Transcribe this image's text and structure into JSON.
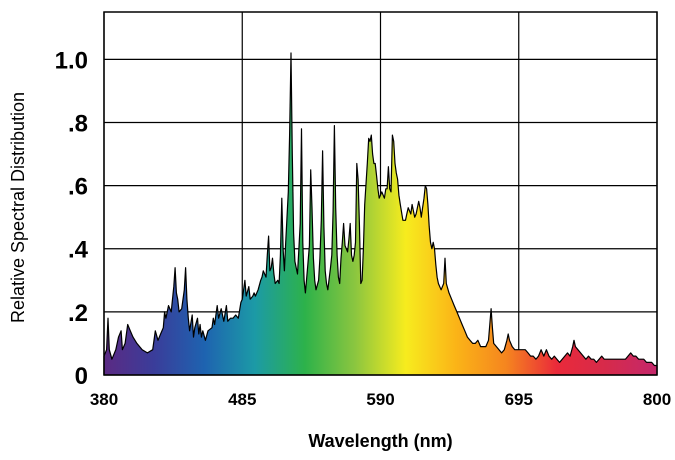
{
  "chart_data": {
    "type": "area",
    "title": "",
    "xlabel": "Wavelength (nm)",
    "ylabel": "Relative Spectral Distribution",
    "xlim": [
      380,
      800
    ],
    "ylim": [
      0,
      1.15
    ],
    "grid": true,
    "x_ticks": [
      {
        "value": 380,
        "label": "380"
      },
      {
        "value": 485,
        "label": "485"
      },
      {
        "value": 590,
        "label": "590"
      },
      {
        "value": 695,
        "label": "695"
      },
      {
        "value": 800,
        "label": "800"
      }
    ],
    "y_ticks": [
      {
        "value": 0,
        "label": "0"
      },
      {
        "value": 0.2,
        "label": ".2"
      },
      {
        "value": 0.4,
        "label": ".4"
      },
      {
        "value": 0.6,
        "label": ".6"
      },
      {
        "value": 0.8,
        "label": ".8"
      },
      {
        "value": 1.0,
        "label": "1.0"
      }
    ],
    "gradient_colors": [
      "#5b2a83",
      "#3a3d9a",
      "#1e63b0",
      "#1c9aa6",
      "#2db24a",
      "#8cc63f",
      "#f7ec1e",
      "#fbb417",
      "#f5851f",
      "#ea2a3a",
      "#d62a4b",
      "#c4286c"
    ],
    "series": [
      {
        "name": "",
        "points": [
          [
            380,
            0.06
          ],
          [
            382,
            0.08
          ],
          [
            383,
            0.18
          ],
          [
            384,
            0.08
          ],
          [
            386,
            0.05
          ],
          [
            389,
            0.08
          ],
          [
            391,
            0.12
          ],
          [
            393,
            0.14
          ],
          [
            394,
            0.08
          ],
          [
            396,
            0.1
          ],
          [
            398,
            0.16
          ],
          [
            400,
            0.14
          ],
          [
            402,
            0.12
          ],
          [
            405,
            0.1
          ],
          [
            409,
            0.08
          ],
          [
            413,
            0.07
          ],
          [
            417,
            0.08
          ],
          [
            419,
            0.14
          ],
          [
            421,
            0.11
          ],
          [
            423,
            0.13
          ],
          [
            425,
            0.15
          ],
          [
            426,
            0.2
          ],
          [
            427,
            0.18
          ],
          [
            429,
            0.22
          ],
          [
            431,
            0.2
          ],
          [
            433,
            0.28
          ],
          [
            434,
            0.34
          ],
          [
            435,
            0.26
          ],
          [
            436,
            0.24
          ],
          [
            437,
            0.2
          ],
          [
            439,
            0.21
          ],
          [
            441,
            0.27
          ],
          [
            442,
            0.34
          ],
          [
            443,
            0.24
          ],
          [
            444,
            0.18
          ],
          [
            445,
            0.14
          ],
          [
            447,
            0.19
          ],
          [
            448,
            0.12
          ],
          [
            449,
            0.15
          ],
          [
            451,
            0.18
          ],
          [
            452,
            0.13
          ],
          [
            453,
            0.16
          ],
          [
            454,
            0.12
          ],
          [
            455,
            0.14
          ],
          [
            457,
            0.11
          ],
          [
            459,
            0.14
          ],
          [
            462,
            0.15
          ],
          [
            463,
            0.18
          ],
          [
            464,
            0.16
          ],
          [
            466,
            0.22
          ],
          [
            467,
            0.18
          ],
          [
            469,
            0.21
          ],
          [
            471,
            0.17
          ],
          [
            473,
            0.22
          ],
          [
            474,
            0.17
          ],
          [
            476,
            0.18
          ],
          [
            478,
            0.18
          ],
          [
            480,
            0.19
          ],
          [
            482,
            0.18
          ],
          [
            484,
            0.23
          ],
          [
            485,
            0.24
          ],
          [
            486,
            0.27
          ],
          [
            487,
            0.3
          ],
          [
            488,
            0.25
          ],
          [
            490,
            0.28
          ],
          [
            491,
            0.24
          ],
          [
            493,
            0.25
          ],
          [
            494,
            0.26
          ],
          [
            495,
            0.25
          ],
          [
            497,
            0.27
          ],
          [
            499,
            0.3
          ],
          [
            500,
            0.31
          ],
          [
            501,
            0.33
          ],
          [
            503,
            0.31
          ],
          [
            504,
            0.38
          ],
          [
            505,
            0.44
          ],
          [
            506,
            0.33
          ],
          [
            507,
            0.34
          ],
          [
            508,
            0.37
          ],
          [
            509,
            0.32
          ],
          [
            510,
            0.29
          ],
          [
            512,
            0.3
          ],
          [
            513,
            0.29
          ],
          [
            514,
            0.38
          ],
          [
            515,
            0.56
          ],
          [
            516,
            0.4
          ],
          [
            517,
            0.33
          ],
          [
            518,
            0.42
          ],
          [
            520,
            0.58
          ],
          [
            521,
            0.76
          ],
          [
            522,
            1.02
          ],
          [
            523,
            0.7
          ],
          [
            524,
            0.45
          ],
          [
            525,
            0.36
          ],
          [
            527,
            0.32
          ],
          [
            528,
            0.4
          ],
          [
            529,
            0.48
          ],
          [
            530,
            0.78
          ],
          [
            531,
            0.42
          ],
          [
            532,
            0.3
          ],
          [
            533,
            0.26
          ],
          [
            535,
            0.36
          ],
          [
            536,
            0.41
          ],
          [
            537,
            0.65
          ],
          [
            538,
            0.53
          ],
          [
            539,
            0.37
          ],
          [
            540,
            0.3
          ],
          [
            541,
            0.27
          ],
          [
            543,
            0.3
          ],
          [
            544,
            0.37
          ],
          [
            545,
            0.49
          ],
          [
            546,
            0.71
          ],
          [
            547,
            0.47
          ],
          [
            548,
            0.33
          ],
          [
            549,
            0.29
          ],
          [
            550,
            0.27
          ],
          [
            552,
            0.34
          ],
          [
            553,
            0.38
          ],
          [
            554,
            0.52
          ],
          [
            555,
            0.79
          ],
          [
            556,
            0.53
          ],
          [
            557,
            0.38
          ],
          [
            558,
            0.31
          ],
          [
            559,
            0.29
          ],
          [
            560,
            0.37
          ],
          [
            561,
            0.42
          ],
          [
            562,
            0.48
          ],
          [
            563,
            0.41
          ],
          [
            565,
            0.39
          ],
          [
            566,
            0.43
          ],
          [
            567,
            0.48
          ],
          [
            568,
            0.38
          ],
          [
            569,
            0.36
          ],
          [
            570,
            0.38
          ],
          [
            571,
            0.42
          ],
          [
            572,
            0.67
          ],
          [
            573,
            0.62
          ],
          [
            574,
            0.48
          ],
          [
            575,
            0.29
          ],
          [
            576,
            0.3
          ],
          [
            577,
            0.4
          ],
          [
            578,
            0.54
          ],
          [
            580,
            0.67
          ],
          [
            581,
            0.75
          ],
          [
            582,
            0.74
          ],
          [
            583,
            0.76
          ],
          [
            584,
            0.7
          ],
          [
            585,
            0.67
          ],
          [
            586,
            0.67
          ],
          [
            587,
            0.63
          ],
          [
            588,
            0.59
          ],
          [
            589,
            0.56
          ],
          [
            591,
            0.58
          ],
          [
            593,
            0.56
          ],
          [
            594,
            0.59
          ],
          [
            595,
            0.59
          ],
          [
            596,
            0.66
          ],
          [
            597,
            0.59
          ],
          [
            598,
            0.58
          ],
          [
            599,
            0.76
          ],
          [
            600,
            0.74
          ],
          [
            601,
            0.67
          ],
          [
            602,
            0.64
          ],
          [
            603,
            0.62
          ],
          [
            604,
            0.57
          ],
          [
            605,
            0.54
          ],
          [
            607,
            0.49
          ],
          [
            609,
            0.49
          ],
          [
            610,
            0.51
          ],
          [
            611,
            0.53
          ],
          [
            612,
            0.52
          ],
          [
            613,
            0.51
          ],
          [
            614,
            0.54
          ],
          [
            615,
            0.52
          ],
          [
            616,
            0.5
          ],
          [
            617,
            0.51
          ],
          [
            618,
            0.53
          ],
          [
            619,
            0.55
          ],
          [
            620,
            0.53
          ],
          [
            621,
            0.5
          ],
          [
            622,
            0.53
          ],
          [
            623,
            0.56
          ],
          [
            624,
            0.6
          ],
          [
            625,
            0.59
          ],
          [
            626,
            0.54
          ],
          [
            627,
            0.47
          ],
          [
            628,
            0.42
          ],
          [
            629,
            0.4
          ],
          [
            630,
            0.42
          ],
          [
            631,
            0.4
          ],
          [
            632,
            0.35
          ],
          [
            633,
            0.31
          ],
          [
            634,
            0.29
          ],
          [
            636,
            0.27
          ],
          [
            638,
            0.29
          ],
          [
            639,
            0.37
          ],
          [
            640,
            0.29
          ],
          [
            642,
            0.26
          ],
          [
            644,
            0.24
          ],
          [
            646,
            0.22
          ],
          [
            648,
            0.2
          ],
          [
            650,
            0.18
          ],
          [
            652,
            0.16
          ],
          [
            654,
            0.14
          ],
          [
            656,
            0.12
          ],
          [
            658,
            0.11
          ],
          [
            660,
            0.1
          ],
          [
            662,
            0.1
          ],
          [
            664,
            0.11
          ],
          [
            666,
            0.09
          ],
          [
            668,
            0.09
          ],
          [
            670,
            0.09
          ],
          [
            672,
            0.11
          ],
          [
            673,
            0.16
          ],
          [
            674,
            0.21
          ],
          [
            675,
            0.15
          ],
          [
            676,
            0.1
          ],
          [
            678,
            0.09
          ],
          [
            680,
            0.08
          ],
          [
            682,
            0.07
          ],
          [
            684,
            0.08
          ],
          [
            686,
            0.11
          ],
          [
            687,
            0.13
          ],
          [
            688,
            0.11
          ],
          [
            690,
            0.09
          ],
          [
            692,
            0.08
          ],
          [
            694,
            0.08
          ],
          [
            696,
            0.08
          ],
          [
            698,
            0.08
          ],
          [
            700,
            0.08
          ],
          [
            702,
            0.07
          ],
          [
            704,
            0.06
          ],
          [
            706,
            0.06
          ],
          [
            708,
            0.05
          ],
          [
            710,
            0.06
          ],
          [
            712,
            0.08
          ],
          [
            714,
            0.06
          ],
          [
            716,
            0.08
          ],
          [
            718,
            0.06
          ],
          [
            720,
            0.05
          ],
          [
            722,
            0.06
          ],
          [
            724,
            0.05
          ],
          [
            726,
            0.04
          ],
          [
            728,
            0.05
          ],
          [
            730,
            0.06
          ],
          [
            732,
            0.07
          ],
          [
            734,
            0.06
          ],
          [
            736,
            0.09
          ],
          [
            737,
            0.11
          ],
          [
            738,
            0.09
          ],
          [
            740,
            0.08
          ],
          [
            742,
            0.07
          ],
          [
            744,
            0.06
          ],
          [
            746,
            0.05
          ],
          [
            748,
            0.06
          ],
          [
            750,
            0.05
          ],
          [
            752,
            0.05
          ],
          [
            754,
            0.04
          ],
          [
            756,
            0.05
          ],
          [
            758,
            0.06
          ],
          [
            760,
            0.05
          ],
          [
            762,
            0.05
          ],
          [
            764,
            0.05
          ],
          [
            766,
            0.05
          ],
          [
            768,
            0.05
          ],
          [
            770,
            0.05
          ],
          [
            772,
            0.05
          ],
          [
            774,
            0.05
          ],
          [
            776,
            0.05
          ],
          [
            778,
            0.06
          ],
          [
            780,
            0.07
          ],
          [
            782,
            0.06
          ],
          [
            784,
            0.06
          ],
          [
            786,
            0.05
          ],
          [
            788,
            0.05
          ],
          [
            790,
            0.05
          ],
          [
            792,
            0.04
          ],
          [
            794,
            0.04
          ],
          [
            796,
            0.04
          ],
          [
            798,
            0.03
          ],
          [
            800,
            0.03
          ]
        ]
      }
    ]
  }
}
